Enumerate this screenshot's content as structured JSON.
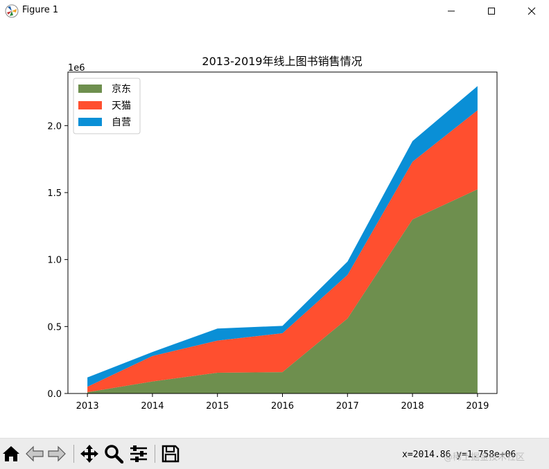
{
  "window": {
    "title": "Figure 1",
    "icons": [
      "matplotlib-icon",
      "minimize-icon",
      "maximize-icon",
      "close-icon"
    ]
  },
  "toolbar": {
    "buttons": [
      "home-icon",
      "back-icon",
      "forward-icon",
      "pan-icon",
      "zoom-icon",
      "configure-subplots-icon",
      "save-icon"
    ],
    "coords_text": "x=2014.86 y=1.758e+06",
    "watermark": "@稀土掘金技术社区"
  },
  "colors": {
    "jingdong": "#6e8f4e",
    "tmall": "#ff4f2f",
    "self": "#0a8fd6"
  },
  "chart_data": {
    "type": "area",
    "stacked": true,
    "title": "2013-2019年线上图书销售情况",
    "xlabel": "",
    "ylabel": "",
    "x": [
      2013,
      2014,
      2015,
      2016,
      2017,
      2018,
      2019
    ],
    "xticks": [
      "2013",
      "2014",
      "2015",
      "2016",
      "2017",
      "2018",
      "2019"
    ],
    "yticks": [
      "0.0",
      "0.5",
      "1.0",
      "1.5",
      "2.0"
    ],
    "ytick_values": [
      0,
      500000,
      1000000,
      1500000,
      2000000
    ],
    "offset_label": "1e6",
    "ylim": [
      0,
      2400000
    ],
    "xlim": [
      2012.7,
      2019.3
    ],
    "legend_position": "upper left",
    "grid": false,
    "series": [
      {
        "name": "京东",
        "color": "#6e8f4e",
        "values": [
          10000,
          90000,
          155000,
          160000,
          560000,
          1300000,
          1525000
        ]
      },
      {
        "name": "天猫",
        "color": "#ff4f2f",
        "values": [
          40000,
          190000,
          240000,
          290000,
          325000,
          430000,
          590000
        ]
      },
      {
        "name": "自营",
        "color": "#0a8fd6",
        "values": [
          70000,
          30000,
          90000,
          55000,
          100000,
          155000,
          180000
        ]
      }
    ]
  }
}
